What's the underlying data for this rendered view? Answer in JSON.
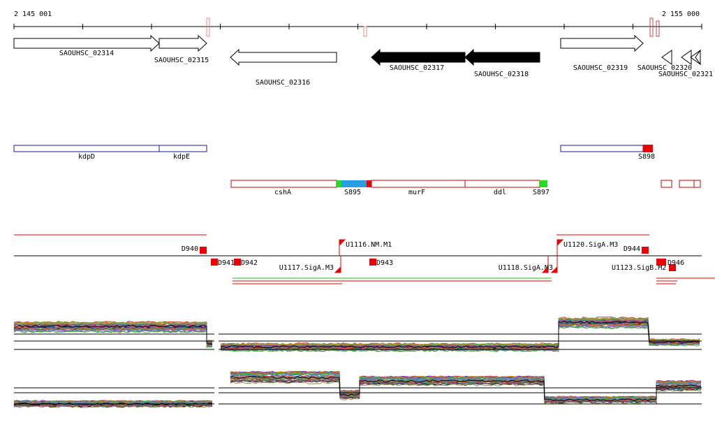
{
  "ruler": {
    "start": "2 145 001",
    "end": "2 155 000"
  },
  "genes": [
    "SAOUHSC_02314",
    "SAOUHSC_02315",
    "SAOUHSC_02316",
    "SAOUHSC_02317",
    "SAOUHSC_02318",
    "SAOUHSC_02319",
    "SAOUHSC_02320",
    "SAOUHSC_02321"
  ],
  "features": [
    "kdpD",
    "kdpE",
    "S898"
  ],
  "operons": [
    "cshA",
    "S895",
    "murF",
    "ddl",
    "S897"
  ],
  "sites": [
    "D940",
    "D941",
    "D942",
    "U1116.NM.M1",
    "U1117.SigA.M3",
    "D943",
    "U1118.SigA.M3",
    "U1120.SigA.M3",
    "D944",
    "U1123.SigB.M2",
    "D946"
  ]
}
